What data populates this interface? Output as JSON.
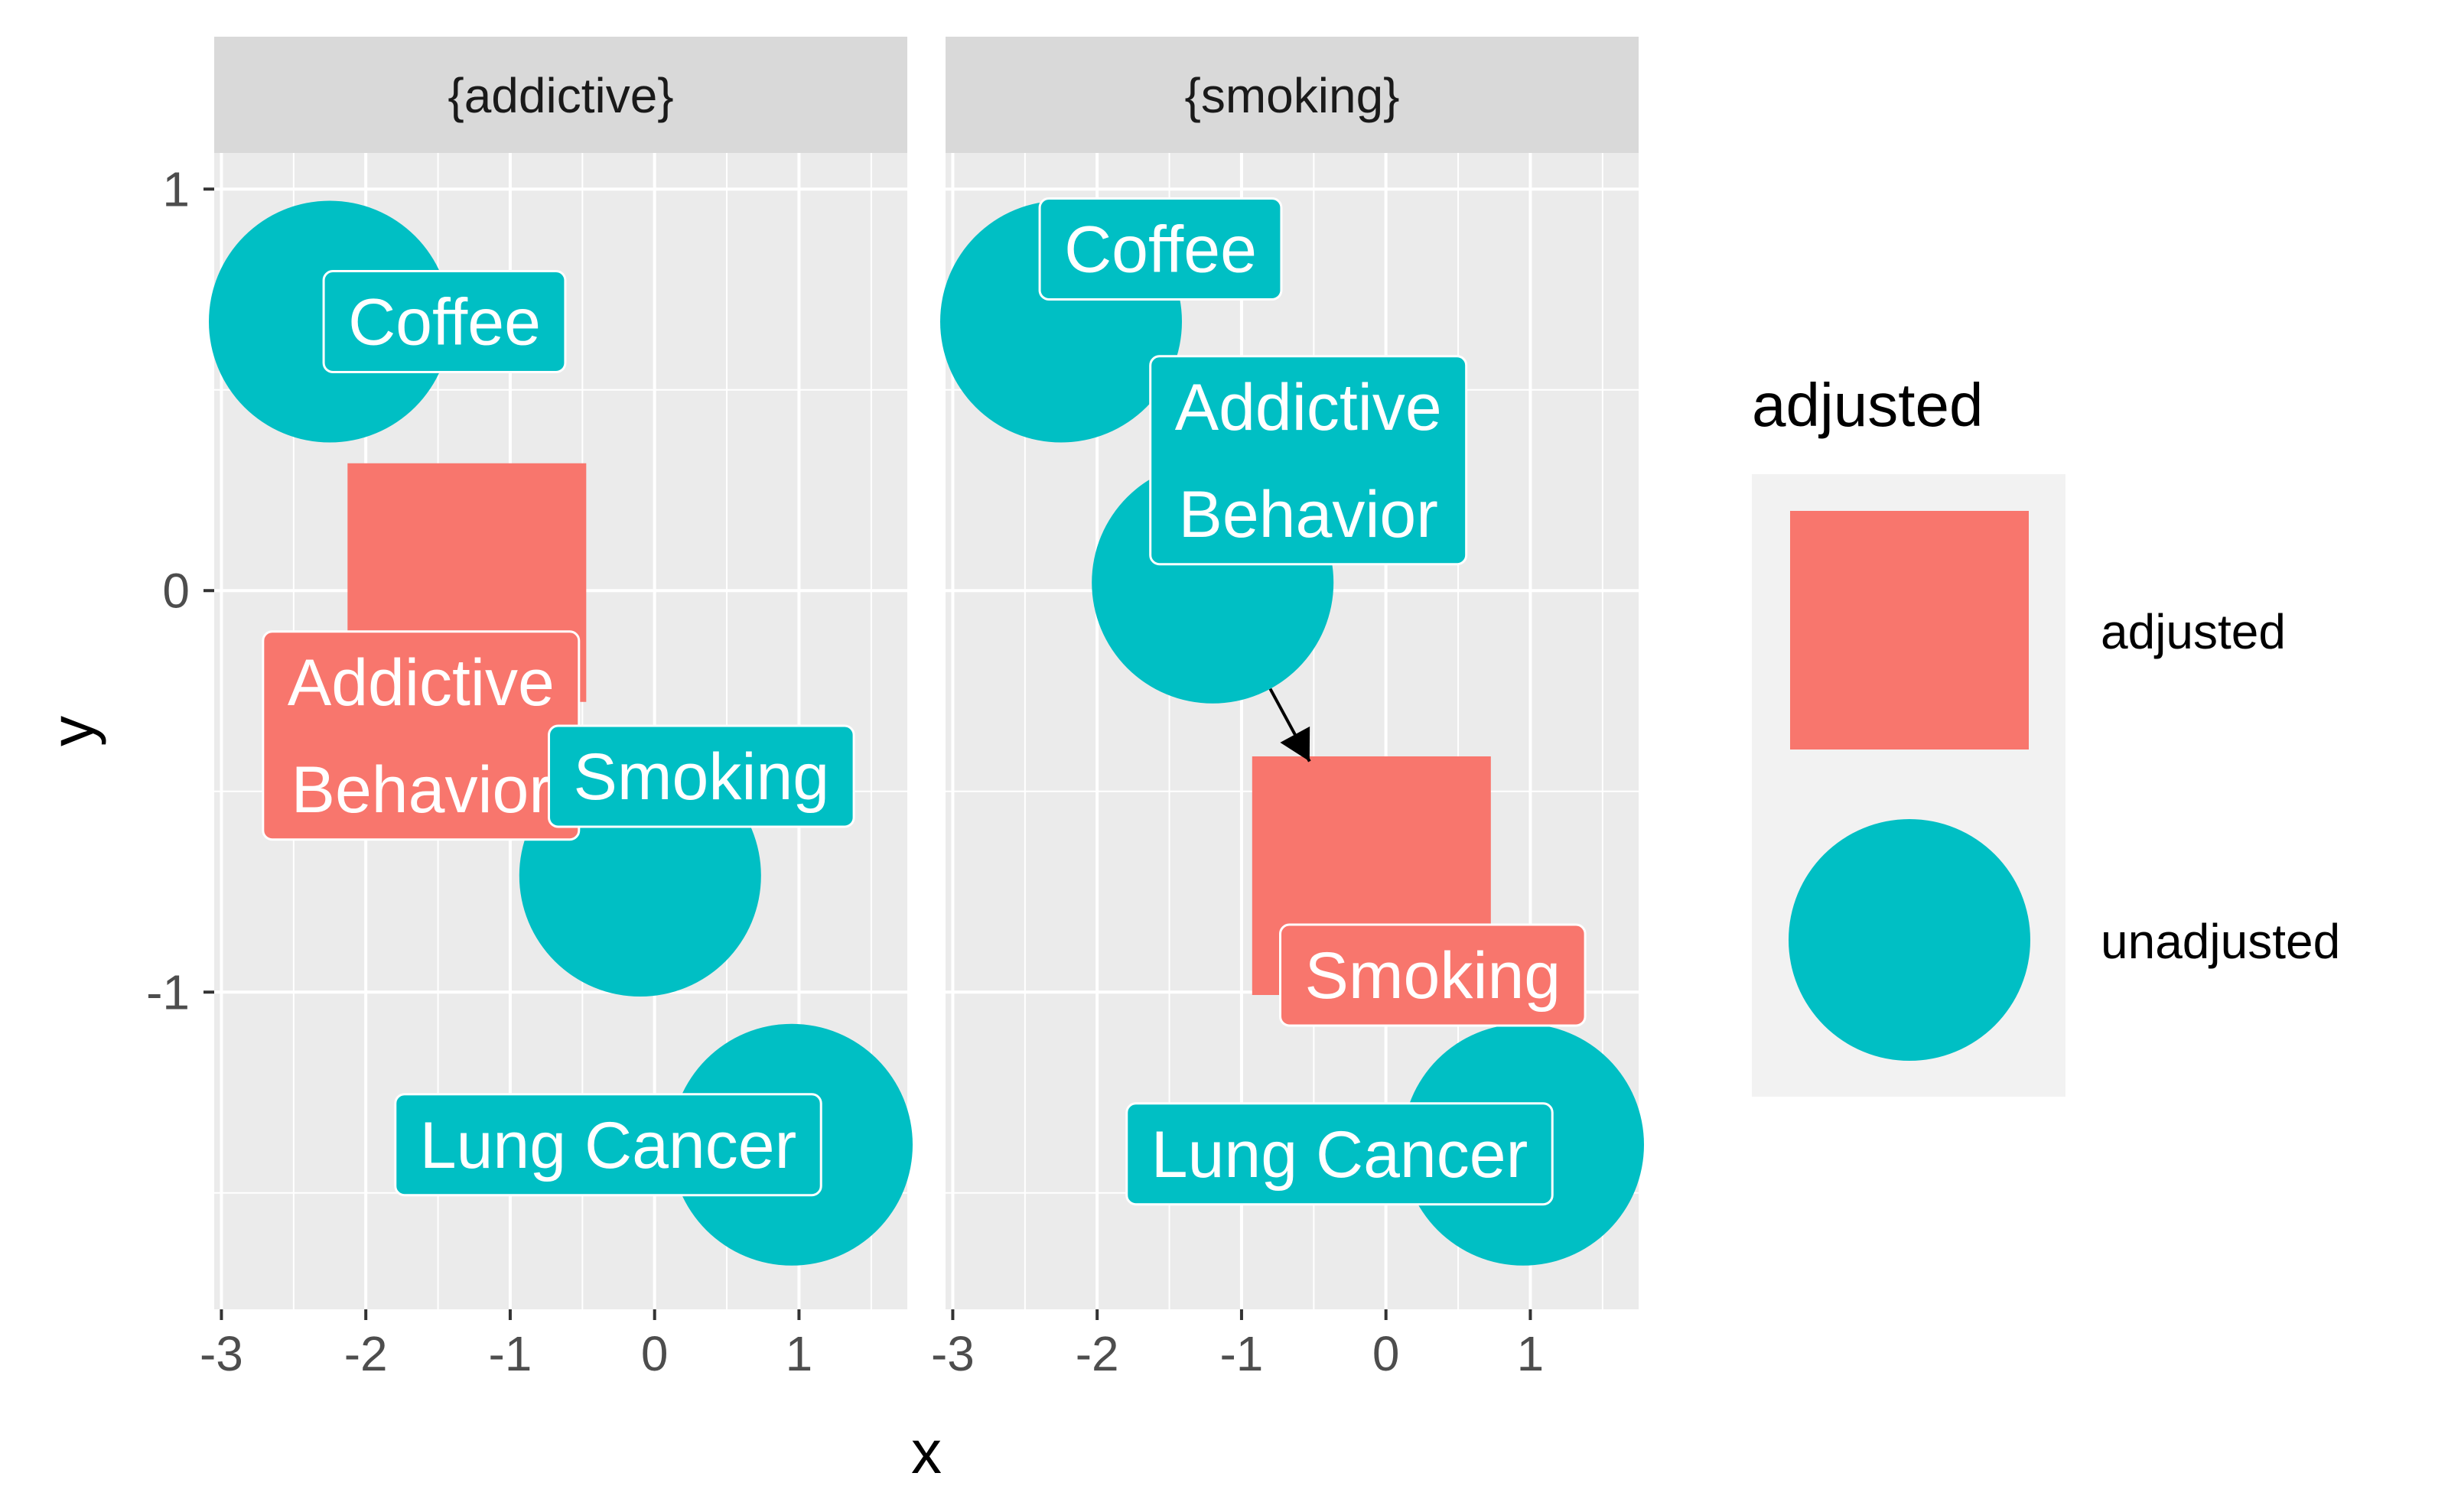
{
  "chart_data": {
    "type": "scatter",
    "xlabel": "x",
    "ylabel": "y",
    "xlim": [
      -3.05,
      1.75
    ],
    "ylim": [
      -1.79,
      1.09
    ],
    "x_ticks": [
      -3,
      -2,
      -1,
      0,
      1
    ],
    "y_ticks": [
      1,
      0,
      -1
    ],
    "x_tick_labels": [
      "-3",
      "-2",
      "-1",
      "0",
      "1"
    ],
    "y_tick_labels": [
      "1",
      "0",
      "-1"
    ],
    "grid": true,
    "legend": {
      "title": "adjusted",
      "position": "right",
      "entries": [
        {
          "label": "adjusted",
          "shape": "square",
          "color": "#F8766D"
        },
        {
          "label": "unadjusted",
          "shape": "circle",
          "color": "#00BFC4"
        }
      ]
    },
    "colors": {
      "adjusted": "#F8766D",
      "unadjusted": "#00BFC4"
    },
    "panels": [
      {
        "strip": "{addictive}",
        "nodes": [
          {
            "name": "Coffee",
            "label": [
              "Coffee"
            ],
            "x": -2.25,
            "y": 0.67,
            "adjusted": "unadjusted"
          },
          {
            "name": "Addictive Behavior",
            "label": [
              "Addictive",
              "Behavior"
            ],
            "x": -1.3,
            "y": 0.02,
            "adjusted": "adjusted"
          },
          {
            "name": "Smoking",
            "label": [
              "Smoking"
            ],
            "x": -0.1,
            "y": -0.71,
            "adjusted": "unadjusted"
          },
          {
            "name": "Lung Cancer",
            "label": [
              "Lung Cancer"
            ],
            "x": 0.95,
            "y": -1.38,
            "adjusted": "unadjusted"
          }
        ],
        "arrows": []
      },
      {
        "strip": "{smoking}",
        "nodes": [
          {
            "name": "Coffee",
            "label": [
              "Coffee"
            ],
            "x": -2.25,
            "y": 0.67,
            "adjusted": "unadjusted"
          },
          {
            "name": "Addictive Behavior",
            "label": [
              "Addictive",
              "Behavior"
            ],
            "x": -1.2,
            "y": 0.02,
            "adjusted": "unadjusted"
          },
          {
            "name": "Smoking",
            "label": [
              "Smoking"
            ],
            "x": -0.1,
            "y": -0.71,
            "adjusted": "adjusted"
          },
          {
            "name": "Lung Cancer",
            "label": [
              "Lung Cancer"
            ],
            "x": 0.95,
            "y": -1.38,
            "adjusted": "unadjusted"
          }
        ],
        "arrows": [
          {
            "from": "Addictive Behavior",
            "to": "Smoking"
          }
        ]
      }
    ]
  }
}
